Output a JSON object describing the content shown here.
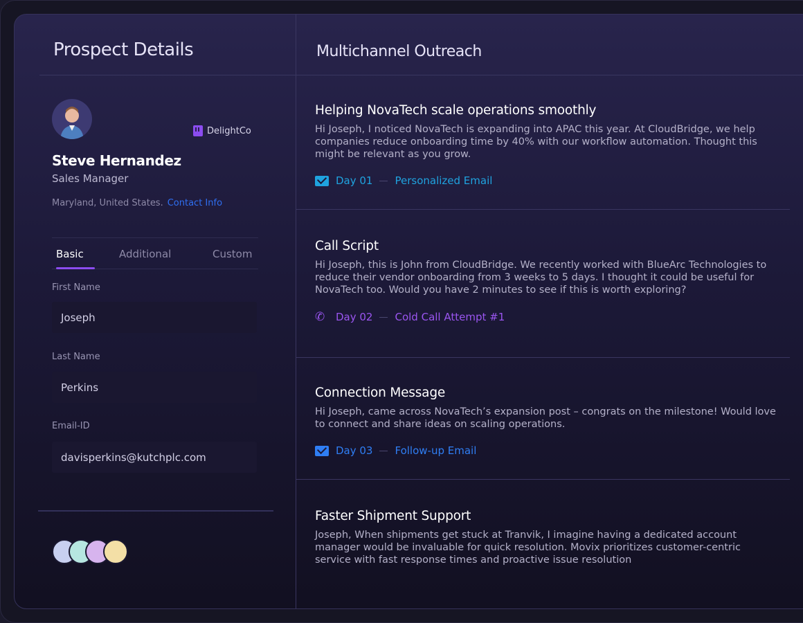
{
  "left": {
    "title": "Prospect Details",
    "company": "DelightCo",
    "name": "Steve Hernandez",
    "role": "Sales Manager",
    "location": "Maryland, United States.",
    "contact_link": "Contact Info",
    "tabs": [
      {
        "label": "Basic",
        "active": true
      },
      {
        "label": "Additional"
      },
      {
        "label": "Custom"
      }
    ],
    "fields": [
      {
        "label": "First Name",
        "value": "Joseph"
      },
      {
        "label": "Last Name",
        "value": "Perkins"
      },
      {
        "label": "Email-ID",
        "value": "davisperkins@kutchplc.com"
      }
    ]
  },
  "right": {
    "title": "Multichannel Outreach",
    "items": [
      {
        "title": "Helping NovaTech scale operations smoothly",
        "body": "Hi Joseph, I noticed NovaTech is expanding into APAC this year. At CloudBridge, we help companies reduce onboarding time by 40% with our workflow automation. Thought this might be relevant as you grow.",
        "icon": "mail-icon",
        "day": "Day 01",
        "channel": "Personalized Email",
        "color": "#1fa3df"
      },
      {
        "title": "Call Script",
        "body": "Hi Joseph, this is John from CloudBridge. We recently worked with BlueArc Technologies to reduce their vendor onboarding from 3 weeks to 5 days. I thought it could be useful for NovaTech too. Would you have 2 minutes to see if this is worth exploring?",
        "icon": "phone-icon",
        "day": "Day 02",
        "channel": "Cold Call Attempt #1",
        "color": "#9a55f0"
      },
      {
        "title": "Connection Message",
        "body": "Hi Joseph, came across NovaTech’s expansion post – congrats on the milestone! Would love to connect and share ideas on scaling operations.",
        "icon": "mail-icon",
        "day": "Day 03",
        "channel": "Follow-up Email",
        "color": "#2f7ef4"
      },
      {
        "title": "Faster Shipment Support",
        "body": "Joseph, When shipments get stuck at Tranvik, I imagine having a dedicated account manager would be invaluable for quick resolution. Movix prioritizes customer-centric service with fast response times and proactive issue resolution"
      }
    ]
  }
}
